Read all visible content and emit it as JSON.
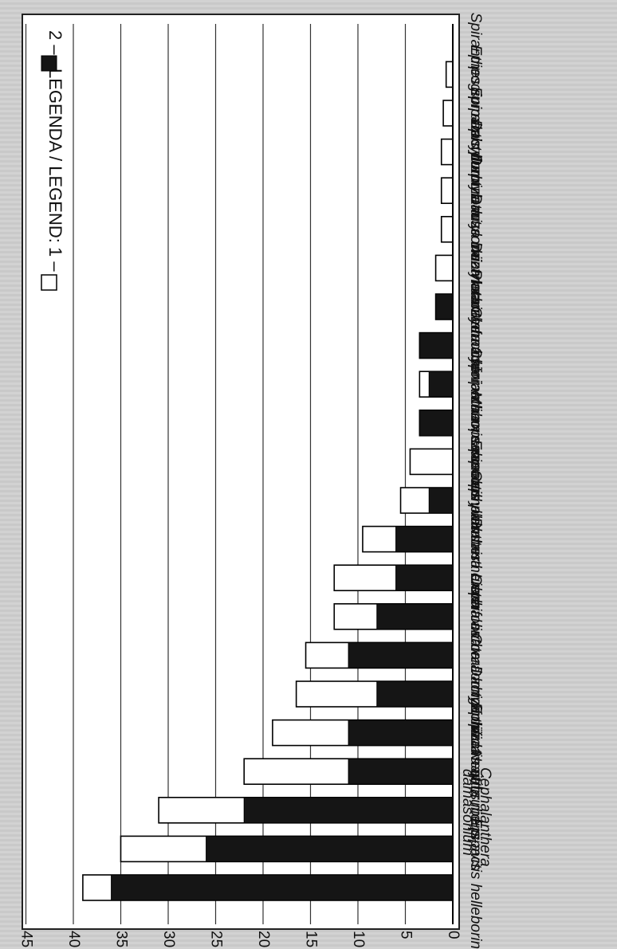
{
  "chart_data": {
    "type": "bar",
    "orientation": "horizontal",
    "rotation": "rotated 90° clockwise as printed",
    "categories": [
      "Epipactis helleborine",
      "Cephalanthera damasonium",
      "Neottia nidus-avis",
      "Epipactis atrorubens",
      "Dactylorhiza majalis",
      "Corallorhiza trifida",
      "Cephalanthera longifolia",
      "Listera ovata",
      "Platanthera bifolia",
      "Cephalanthera rubra",
      "Epipactis palustris",
      "Malaxis monophyllos",
      "Cypripedium calceolus",
      "Gymnadenia conopsea",
      "Platanthera chlorantha",
      "Dactylorhiza fuchsii",
      "Dactylorhiza maculata",
      "Dactylorhiza incarnata",
      "Dactylorhiza russowii",
      "Epipactis purpurata",
      "Epipogium aphyllum",
      "Spiranthes spiralis"
    ],
    "series": [
      {
        "name": "1",
        "values": [
          39,
          35,
          31,
          22,
          19,
          16.5,
          15.5,
          12.5,
          12.5,
          9.5,
          5.5,
          4.5,
          3.5,
          3.5,
          3.5,
          1.8,
          1.8,
          1.2,
          1.2,
          1.2,
          1,
          0.7
        ],
        "fill": "#ffffff"
      },
      {
        "name": "2",
        "values": [
          36,
          26,
          22,
          11,
          11,
          8,
          11,
          8,
          6,
          6,
          2.5,
          0,
          3.5,
          2.5,
          3.5,
          1.8,
          0,
          0,
          0,
          0,
          0,
          0
        ],
        "fill": "#151515"
      }
    ],
    "ticks": [
      "0",
      "5",
      "10",
      "15",
      "20",
      "25",
      "30",
      "35",
      "40",
      "45"
    ],
    "xlim": [
      0,
      45
    ],
    "grid": true,
    "legend": {
      "title": "LEGENDA / LEGEND:",
      "items": [
        {
          "label": "1 –",
          "fill": "#ffffff"
        },
        {
          "label": "2 –",
          "fill": "#151515"
        }
      ],
      "placement": "top"
    }
  }
}
